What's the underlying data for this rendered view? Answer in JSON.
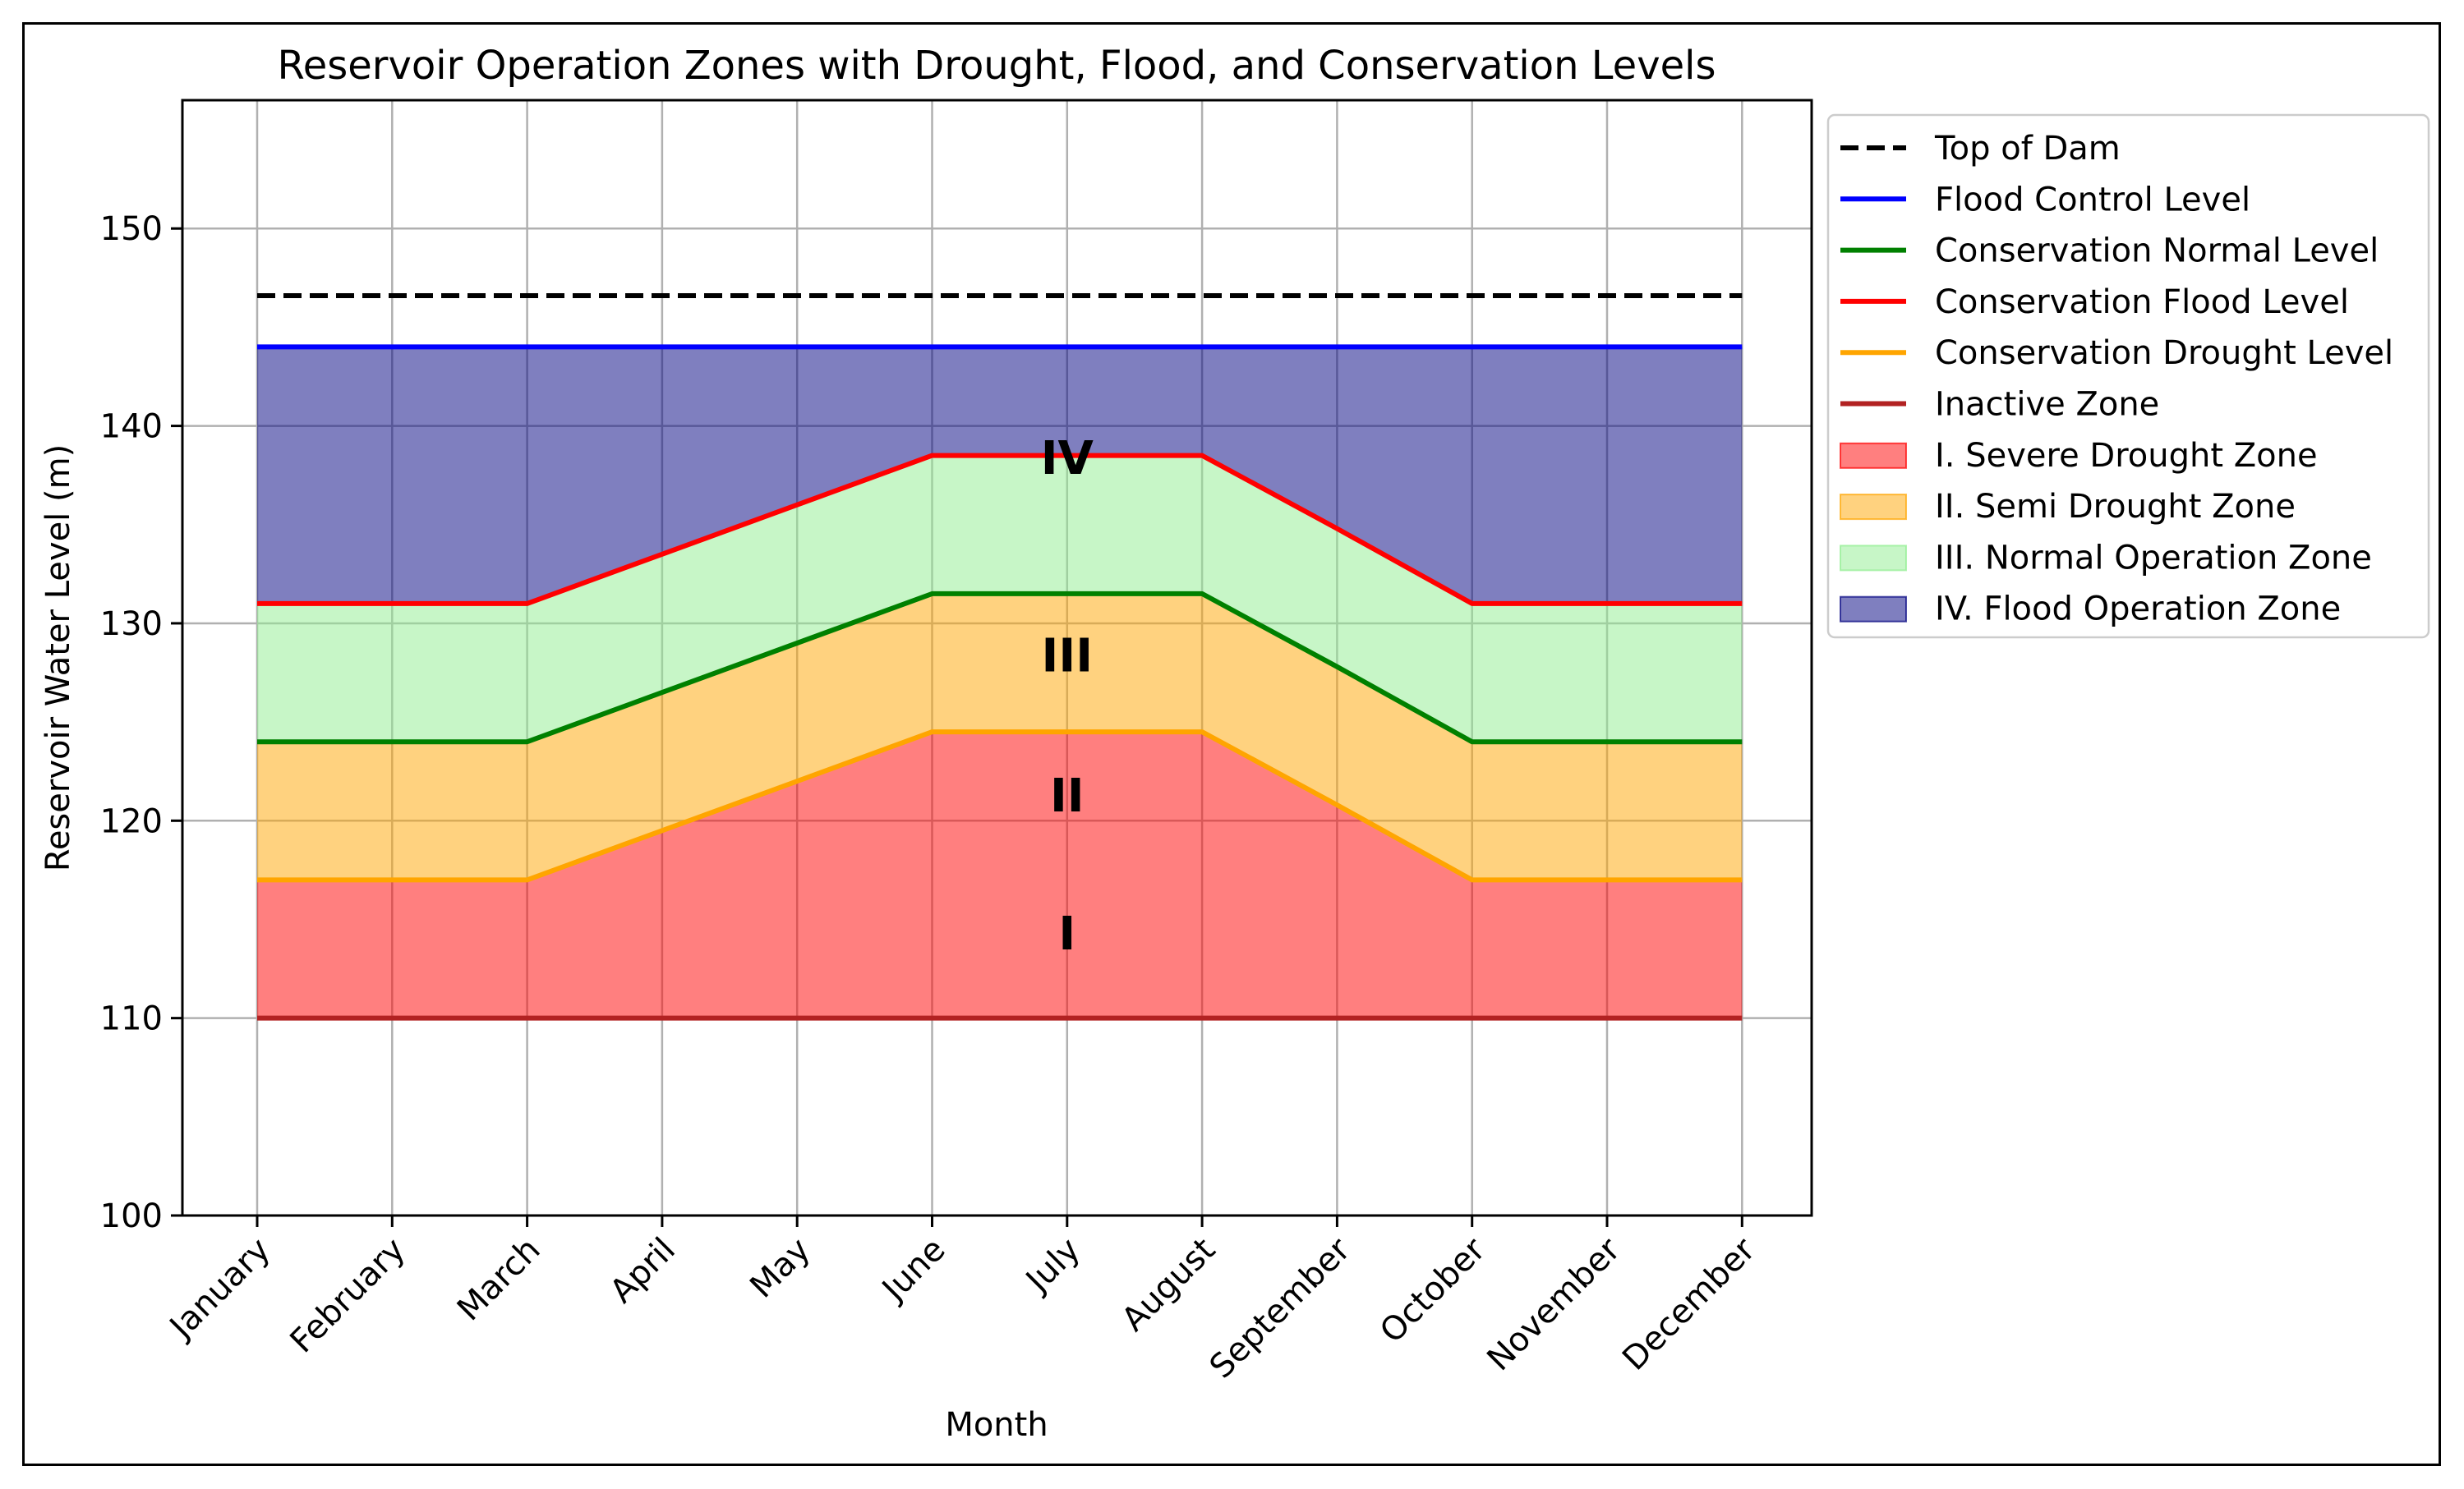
{
  "chart_data": {
    "type": "line",
    "title": "Reservoir Operation Zones with Drought, Flood, and Conservation Levels",
    "xlabel": "Month",
    "ylabel": "Reservoir Water Level (m)",
    "categories": [
      "January",
      "February",
      "March",
      "April",
      "May",
      "June",
      "July",
      "August",
      "September",
      "October",
      "November",
      "December"
    ],
    "ylim": [
      100,
      156.5
    ],
    "yticks": [
      100,
      110,
      120,
      130,
      140,
      150
    ],
    "grid": true,
    "legend_position": "upper-right-outside",
    "lines": [
      {
        "name": "Top of Dam",
        "color": "#000000",
        "style": "dashed",
        "values": [
          146.6,
          146.6,
          146.6,
          146.6,
          146.6,
          146.6,
          146.6,
          146.6,
          146.6,
          146.6,
          146.6,
          146.6
        ]
      },
      {
        "name": "Flood Control Level",
        "color": "#0000ff",
        "style": "solid",
        "values": [
          144,
          144,
          144,
          144,
          144,
          144,
          144,
          144,
          144,
          144,
          144,
          144
        ]
      },
      {
        "name": "Conservation Normal Level",
        "color": "#008000",
        "style": "solid",
        "values": [
          124,
          124,
          124,
          126.5,
          129,
          131.5,
          131.5,
          131.5,
          127.8,
          124,
          124,
          124
        ]
      },
      {
        "name": "Conservation Flood Level",
        "color": "#ff0000",
        "style": "solid",
        "values": [
          131,
          131,
          131,
          133.5,
          136,
          138.5,
          138.5,
          138.5,
          134.8,
          131,
          131,
          131
        ]
      },
      {
        "name": "Conservation Drought Level",
        "color": "#ffa500",
        "style": "solid",
        "values": [
          117,
          117,
          117,
          119.5,
          122,
          124.5,
          124.5,
          124.5,
          120.8,
          117,
          117,
          117
        ]
      },
      {
        "name": "Inactive Zone",
        "color": "#b22222",
        "style": "solid",
        "values": [
          110,
          110,
          110,
          110,
          110,
          110,
          110,
          110,
          110,
          110,
          110,
          110
        ]
      }
    ],
    "zones": [
      {
        "name": "I. Severe Drought Zone",
        "color": "#ff0000",
        "opacity": 0.5,
        "lower": "Inactive Zone",
        "upper": "Conservation Drought Level"
      },
      {
        "name": "II. Semi Drought Zone",
        "color": "#ffa500",
        "opacity": 0.5,
        "lower": "Conservation Drought Level",
        "upper": "Conservation Normal Level"
      },
      {
        "name": "III. Normal Operation Zone",
        "color": "#90ee90",
        "opacity": 0.5,
        "lower": "Conservation Normal Level",
        "upper": "Conservation Flood Level"
      },
      {
        "name": "IV. Flood Operation Zone",
        "color": "#000080",
        "opacity": 0.5,
        "lower": "Conservation Flood Level",
        "upper": "Flood Control Level"
      }
    ],
    "annotations": [
      {
        "text": "IV",
        "x": 6,
        "y": 138.2
      },
      {
        "text": "III",
        "x": 6,
        "y": 128.2
      },
      {
        "text": "II",
        "x": 6,
        "y": 121.1
      },
      {
        "text": "I",
        "x": 6,
        "y": 114.1
      }
    ],
    "legend": [
      "Top of Dam",
      "Flood Control Level",
      "Conservation Normal Level",
      "Conservation Flood Level",
      "Conservation Drought Level",
      "Inactive Zone",
      "I. Severe Drought Zone",
      "II. Semi Drought Zone",
      "III. Normal Operation Zone",
      "IV. Flood Operation Zone"
    ]
  }
}
